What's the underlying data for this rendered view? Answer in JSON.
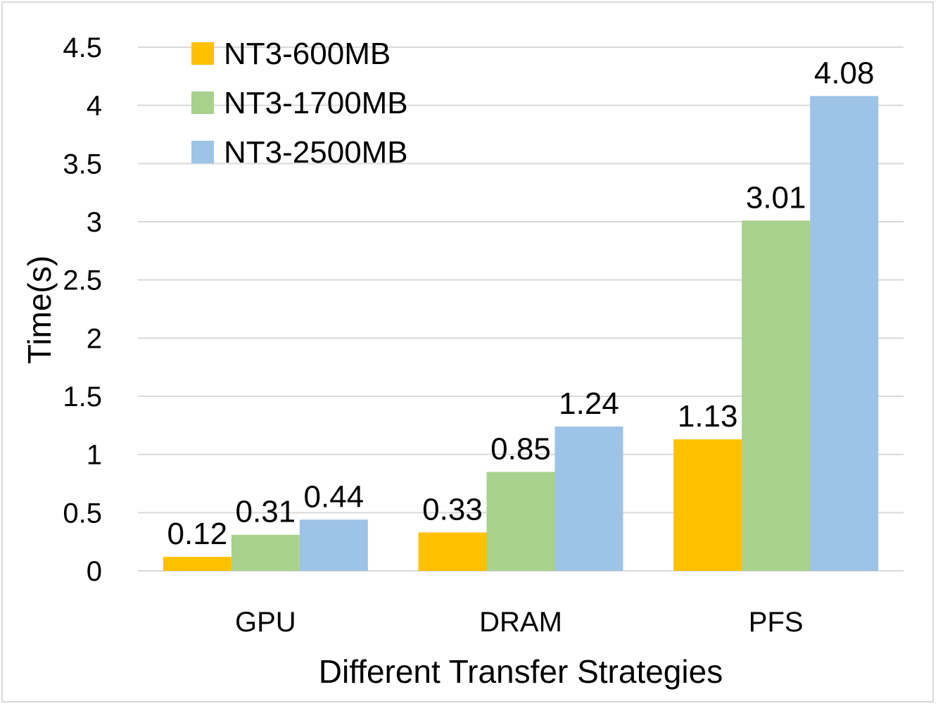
{
  "chart_data": {
    "type": "bar",
    "title": "",
    "xlabel": "Different Transfer Strategies",
    "ylabel": "Time(s)",
    "categories": [
      "GPU",
      "DRAM",
      "PFS"
    ],
    "series": [
      {
        "name": "NT3-600MB",
        "color": "#ffc000",
        "values": [
          0.12,
          0.33,
          1.13
        ],
        "labels": [
          "0.12",
          "0.33",
          "1.13"
        ]
      },
      {
        "name": "NT3-1700MB",
        "color": "#a9d18e",
        "values": [
          0.31,
          0.85,
          3.01
        ],
        "labels": [
          "0.31",
          "0.85",
          "3.01"
        ]
      },
      {
        "name": "NT3-2500MB",
        "color": "#9dc3e6",
        "values": [
          0.44,
          1.24,
          4.08
        ],
        "labels": [
          "0.44",
          "1.24",
          "4.08"
        ]
      }
    ],
    "ylim": [
      0,
      4.5
    ],
    "yticks": [
      "0",
      "0.5",
      "1",
      "1.5",
      "2",
      "2.5",
      "3",
      "3.5",
      "4",
      "4.5"
    ],
    "ytick_values": [
      0,
      0.5,
      1,
      1.5,
      2,
      2.5,
      3,
      3.5,
      4,
      4.5
    ],
    "grid": true,
    "legend_position": "top-left"
  }
}
